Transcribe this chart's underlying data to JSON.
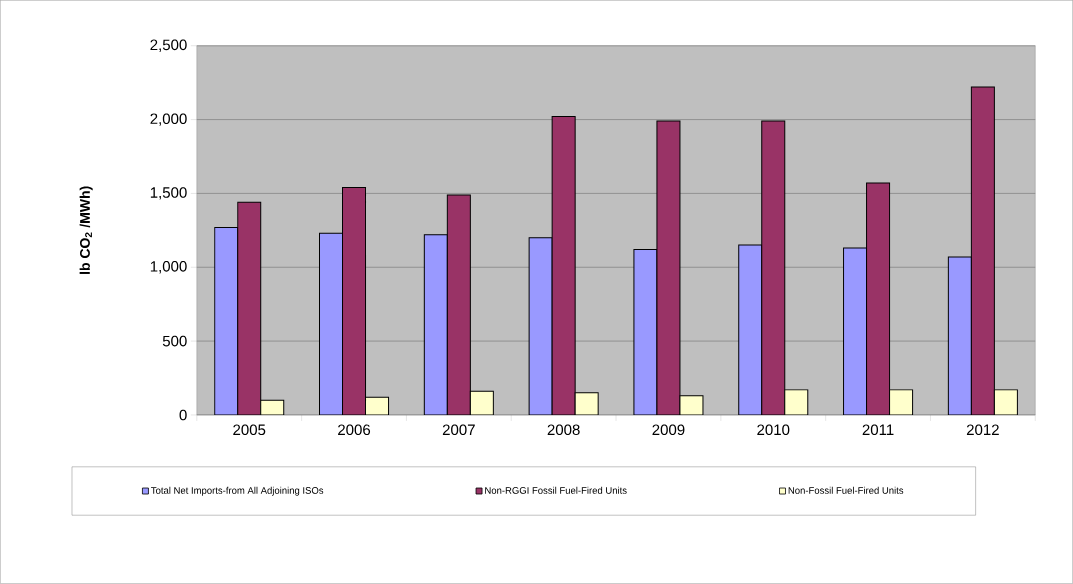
{
  "chart_data": {
    "type": "bar",
    "ylabel": "lb CO$_{2}$ /MWh)",
    "categories": [
      "2005",
      "2006",
      "2007",
      "2008",
      "2009",
      "2010",
      "2011",
      "2012"
    ],
    "series": [
      {
        "name": "Total Net Imports-from All Adjoining ISOs",
        "color": "#9999ff",
        "values": [
          1270,
          1230,
          1220,
          1200,
          1120,
          1150,
          1130,
          1070
        ]
      },
      {
        "name": "Non-RGGI Fossil Fuel-Fired Units",
        "color": "#993366",
        "values": [
          1440,
          1540,
          1490,
          2020,
          1990,
          1990,
          1570,
          2220
        ]
      },
      {
        "name": "Non-Fossil Fuel-Fired Units",
        "color": "#ffffcc",
        "values": [
          100,
          120,
          160,
          150,
          130,
          170,
          170,
          170
        ]
      }
    ],
    "ylim": [
      0,
      2500
    ],
    "yticks": [
      0,
      {
        "value": 500,
        "label": "500"
      },
      {
        "value": 1000,
        "label": "1,000"
      },
      {
        "value": 1500,
        "label": "1,500"
      },
      {
        "value": 2000,
        "label": "2,000"
      },
      {
        "value": 2500,
        "label": "2,500"
      }
    ],
    "grid": "y",
    "legend": "bottom"
  }
}
